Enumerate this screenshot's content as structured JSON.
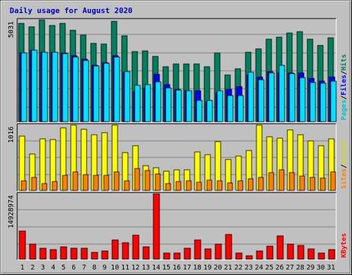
{
  "chart_data": {
    "type": "bar",
    "title": "Daily usage for August 2020",
    "colors": {
      "hits": "#007f5f",
      "files": "#0000ff",
      "pages": "#00e0ff",
      "visits": "#ffff00",
      "sites": "#ff8000",
      "kbytes": "#ff0000",
      "weekend_day": "#00a000",
      "weekday": "#000000"
    },
    "categories": [
      "1",
      "2",
      "3",
      "4",
      "5",
      "6",
      "7",
      "8",
      "9",
      "10",
      "11",
      "12",
      "13",
      "14",
      "15",
      "16",
      "17",
      "18",
      "19",
      "20",
      "21",
      "22",
      "23",
      "24",
      "25",
      "26",
      "27",
      "28",
      "29",
      "30",
      "31"
    ],
    "weekend_days": [
      1,
      2,
      8,
      9,
      15,
      16,
      22,
      23,
      29,
      30
    ],
    "panels": [
      {
        "id": "hits",
        "ymax_label": "5031",
        "ymax": 5031,
        "legend": [
          "Hits",
          "Files",
          "Pages"
        ],
        "series": [
          {
            "name": "Hits",
            "values": [
              4870,
              4680,
              5031,
              4760,
              4870,
              4520,
              4300,
              3880,
              3830,
              4970,
              4260,
              3470,
              3500,
              3230,
              2730,
              2870,
              2870,
              2870,
              2710,
              3400,
              2320,
              2630,
              3440,
              3610,
              4070,
              4190,
              4400,
              4450,
              4090,
              3790,
              4160
            ]
          },
          {
            "name": "Files",
            "values": [
              3400,
              3530,
              3430,
              3450,
              3400,
              3260,
              3100,
              2800,
              2920,
              3280,
              2460,
              1500,
              1680,
              2350,
              1820,
              1600,
              1540,
              1540,
              1000,
              1420,
              1600,
              1750,
              2320,
              2200,
              2490,
              2400,
              2410,
              2400,
              2150,
              2000,
              2200
            ]
          },
          {
            "name": "Pages",
            "values": [
              3400,
              3520,
              3450,
              3430,
              3380,
              3210,
              3040,
              2770,
              2900,
              3200,
              2480,
              1800,
              1820,
              1970,
              1680,
              1570,
              1530,
              1060,
              1070,
              1530,
              1300,
              1300,
              2460,
              2090,
              2430,
              2800,
              2380,
              2190,
              1950,
              1900,
              2020
            ]
          }
        ]
      },
      {
        "id": "visits",
        "ymax_label": "1016",
        "ymax": 1016,
        "legend": [
          "Visits",
          "Sites"
        ],
        "series": [
          {
            "name": "Visits",
            "values": [
              850,
              570,
              800,
              790,
              970,
              1016,
              950,
              870,
              900,
              1016,
              590,
              690,
              380,
              350,
              300,
              320,
              320,
              600,
              560,
              760,
              480,
              530,
              620,
              1016,
              830,
              810,
              940,
              870,
              770,
              690,
              800
            ]
          },
          {
            "name": "Sites",
            "values": [
              150,
              200,
              110,
              140,
              230,
              290,
              250,
              230,
              240,
              290,
              150,
              340,
              310,
              260,
              110,
              140,
              150,
              130,
              160,
              150,
              120,
              150,
              180,
              200,
              280,
              320,
              280,
              220,
              200,
              190,
              290
            ]
          }
        ]
      },
      {
        "id": "kbytes",
        "ymax_label": "14928974",
        "ymax": 14928974,
        "legend": [
          "KBytes"
        ],
        "series": [
          {
            "name": "KBytes",
            "values": [
              6370000,
              3500000,
              2500000,
              2200000,
              2850000,
              2500000,
              2500000,
              1500000,
              1900000,
              4400000,
              3750000,
              5450000,
              2850000,
              14928974,
              1400000,
              1400000,
              2500000,
              4400000,
              2300000,
              3500000,
              5700000,
              1400000,
              800000,
              1900000,
              3000000,
              5400000,
              3500000,
              3200000,
              2300000,
              1400000,
              2150000
            ]
          }
        ]
      }
    ]
  }
}
